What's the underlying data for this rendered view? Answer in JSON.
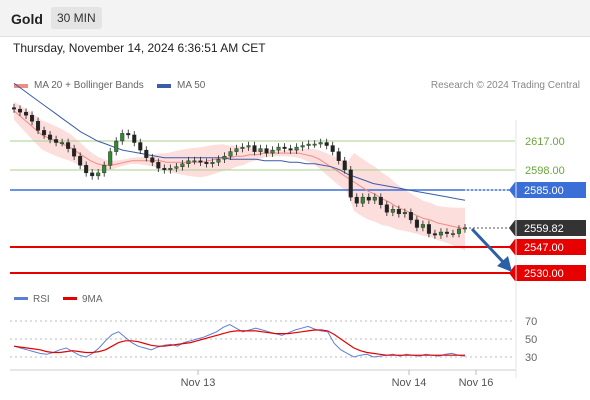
{
  "header": {
    "symbol": "Gold",
    "timeframe": "30 MIN"
  },
  "timestamp": "Thursday, November 14, 2024 6:36:51 AM CET",
  "legend": {
    "ma20_label": "MA 20 + Bollinger Bands",
    "ma50_label": "MA 50",
    "ma20_color": "#f28b82",
    "ma50_color": "#3b5ca8",
    "credit": "Research © 2024 Trading Central"
  },
  "chart_data": [
    {
      "type": "candlestick",
      "title": "",
      "y_axis_labels": [
        "2617.00",
        "2598.00",
        "2585.00",
        "2559.82",
        "2547.00",
        "2530.00"
      ],
      "levels": [
        {
          "value": 2617.0,
          "label": "2617.00",
          "style": "resistance",
          "color": "#a8d08d"
        },
        {
          "value": 2598.0,
          "label": "2598.00",
          "style": "resistance",
          "color": "#a8d08d"
        },
        {
          "value": 2585.0,
          "label": "2585.00",
          "style": "pivot",
          "color": "#3b6fd8"
        },
        {
          "value": 2559.82,
          "label": "2559.82",
          "style": "last-price",
          "color": "#333333"
        },
        {
          "value": 2547.0,
          "label": "2547.00",
          "style": "target",
          "color": "#e60000"
        },
        {
          "value": 2530.0,
          "label": "2530.00",
          "style": "target",
          "color": "#e60000"
        }
      ],
      "closes": [
        2638,
        2636,
        2634,
        2630,
        2624,
        2621,
        2618,
        2616,
        2616,
        2612,
        2607,
        2601,
        2596,
        2594,
        2596,
        2601,
        2610,
        2617,
        2622,
        2621,
        2616,
        2611,
        2606,
        2603,
        2599,
        2598,
        2599,
        2600,
        2602,
        2604,
        2604,
        2603,
        2602,
        2603,
        2605,
        2607,
        2610,
        2612,
        2613,
        2614,
        2610,
        2612,
        2609,
        2611,
        2613,
        2612,
        2611,
        2613,
        2614,
        2615,
        2615,
        2616,
        2614,
        2610,
        2604,
        2598,
        2580,
        2576,
        2580,
        2578,
        2580,
        2575,
        2570,
        2572,
        2569,
        2570,
        2565,
        2560,
        2562,
        2556,
        2555,
        2557,
        2556,
        2556,
        2559,
        2559.82
      ],
      "ma20": [
        2637,
        2633,
        2629,
        2625,
        2621,
        2619,
        2617,
        2615,
        2613,
        2610,
        2607,
        2604,
        2602,
        2601,
        2601,
        2602,
        2603,
        2604,
        2604,
        2604,
        2604,
        2604,
        2603,
        2603,
        2603,
        2603,
        2603,
        2603,
        2604,
        2605,
        2606,
        2606,
        2607,
        2607,
        2608,
        2608,
        2609,
        2609,
        2609,
        2609,
        2609,
        2609,
        2608,
        2607,
        2605,
        2602,
        2599,
        2596,
        2593,
        2590,
        2587,
        2584,
        2582,
        2579,
        2577,
        2574,
        2572,
        2570,
        2568,
        2566,
        2565,
        2563,
        2562,
        2561,
        2560,
        2559
      ],
      "ma50": [
        2655,
        2651,
        2647,
        2643,
        2639,
        2635,
        2631,
        2627,
        2623,
        2620,
        2617,
        2615,
        2613,
        2611,
        2610,
        2609,
        2608,
        2607,
        2606,
        2606,
        2606,
        2606,
        2606,
        2606,
        2606,
        2606,
        2605,
        2605,
        2605,
        2605,
        2604,
        2604,
        2604,
        2603,
        2603,
        2602,
        2602,
        2601,
        2600,
        2598,
        2595,
        2593,
        2591,
        2589,
        2588,
        2587,
        2586,
        2585,
        2584,
        2583,
        2582,
        2581,
        2580,
        2579,
        2578
      ],
      "rsi": {
        "label": "RSI",
        "color": "#5b7ed6",
        "values": [
          42,
          40,
          38,
          36,
          34,
          33,
          35,
          38,
          40,
          36,
          32,
          30,
          34,
          40,
          48,
          55,
          58,
          52,
          46,
          42,
          40,
          38,
          41,
          43,
          44,
          42,
          46,
          48,
          50,
          52,
          55,
          58,
          63,
          66,
          62,
          58,
          60,
          62,
          60,
          58,
          56,
          54,
          57,
          60,
          62,
          64,
          61,
          59,
          58,
          45,
          38,
          34,
          30,
          32,
          33,
          30,
          31,
          32,
          33,
          31,
          33,
          32,
          31,
          33,
          32,
          31,
          33,
          34,
          32,
          31
        ]
      },
      "ma9": {
        "label": "9MA",
        "color": "#e60000",
        "values": [
          42,
          41,
          40,
          39,
          38,
          36,
          35,
          35,
          36,
          37,
          36,
          35,
          35,
          36,
          38,
          42,
          46,
          48,
          48,
          47,
          45,
          43,
          42,
          42,
          43,
          44,
          45,
          46,
          48,
          50,
          52,
          54,
          56,
          58,
          59,
          59,
          59,
          59,
          58,
          57,
          56,
          56,
          56,
          57,
          58,
          59,
          60,
          60,
          59,
          55,
          50,
          45,
          40,
          37,
          35,
          34,
          33,
          32,
          32,
          32,
          32,
          32,
          32,
          32,
          32,
          32,
          32,
          32,
          32,
          32
        ]
      },
      "rsi_levels": [
        "70",
        "50",
        "30"
      ],
      "x_labels": [
        "Nov 13",
        "Nov 14",
        "Nov 16"
      ]
    }
  ]
}
